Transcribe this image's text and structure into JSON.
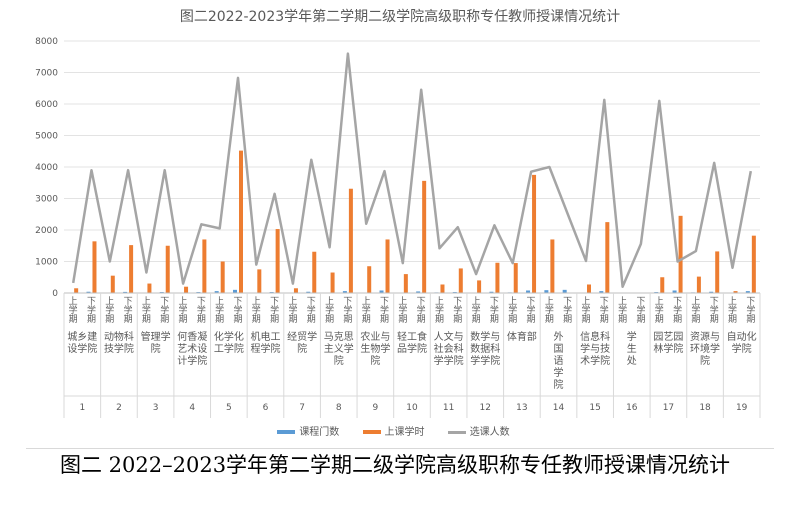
{
  "chart_data": {
    "type": "bar",
    "title": "图二2022-2023学年第二学期二级学院高级职称专任教师授课情况统计",
    "ylim": [
      0,
      8000
    ],
    "yticks": [
      0,
      1000,
      2000,
      3000,
      4000,
      5000,
      6000,
      7000,
      8000
    ],
    "grid": true,
    "legend_position": "bottom",
    "semester_labels": [
      "上学期",
      "下学期"
    ],
    "groups": [
      {
        "num": "1",
        "name": "城乡建设学院"
      },
      {
        "num": "2",
        "name": "动物科技学院"
      },
      {
        "num": "3",
        "name": "管理学院"
      },
      {
        "num": "4",
        "name": "何香凝艺术设计学院"
      },
      {
        "num": "5",
        "name": "化学化工学院"
      },
      {
        "num": "6",
        "name": "机电工程学院"
      },
      {
        "num": "7",
        "name": "经贸学院"
      },
      {
        "num": "8",
        "name": "马克思主义学院"
      },
      {
        "num": "9",
        "name": "农业与生物学院"
      },
      {
        "num": "10",
        "name": "轻工食品学院"
      },
      {
        "num": "11",
        "name": "人文与社会科学学院"
      },
      {
        "num": "12",
        "name": "数学与数据科学学院"
      },
      {
        "num": "13",
        "name": "体育部"
      },
      {
        "num": "14",
        "name": "外国语学院"
      },
      {
        "num": "15",
        "name": "信息科学与技术学院"
      },
      {
        "num": "16",
        "name": "学生处"
      },
      {
        "num": "17",
        "name": "园艺园林学院"
      },
      {
        "num": "18",
        "name": "资源与环境学院"
      },
      {
        "num": "19",
        "name": "自动化学院"
      }
    ],
    "series": [
      {
        "name": "课程门数",
        "color": "#5b9bd5",
        "values": [
          10,
          40,
          15,
          35,
          12,
          30,
          8,
          30,
          60,
          100,
          15,
          30,
          10,
          40,
          12,
          60,
          15,
          80,
          6,
          50,
          20,
          30,
          12,
          40,
          20,
          80,
          90,
          100,
          15,
          60,
          0,
          5,
          30,
          80,
          20,
          40,
          15,
          60
        ]
      },
      {
        "name": "上课学时",
        "color": "#ed7d31",
        "values": [
          150,
          1640,
          550,
          1520,
          300,
          1500,
          200,
          1700,
          1000,
          4520,
          750,
          2030,
          150,
          1310,
          650,
          3310,
          850,
          1700,
          600,
          3560,
          270,
          780,
          400,
          960,
          950,
          3750,
          1700,
          null,
          270,
          2250,
          0,
          0,
          500,
          2450,
          520,
          1320,
          60,
          1820
        ]
      },
      {
        "name": "选课人数",
        "color": "#a5a5a5",
        "values": [
          320,
          3900,
          1000,
          3900,
          650,
          3900,
          300,
          2180,
          2050,
          6830,
          900,
          3150,
          300,
          4230,
          1450,
          7600,
          2200,
          3870,
          950,
          6450,
          1420,
          2090,
          600,
          2150,
          950,
          3850,
          4000,
          null,
          1020,
          6130,
          200,
          1560,
          6100,
          1000,
          1330,
          4130,
          800,
          3870
        ]
      }
    ]
  },
  "legend": {
    "items": [
      "课程门数",
      "上课学时",
      "选课人数"
    ]
  },
  "caption": "图二 2022–2023学年第二学期二级学院高级职称专任教师授课情况统计"
}
